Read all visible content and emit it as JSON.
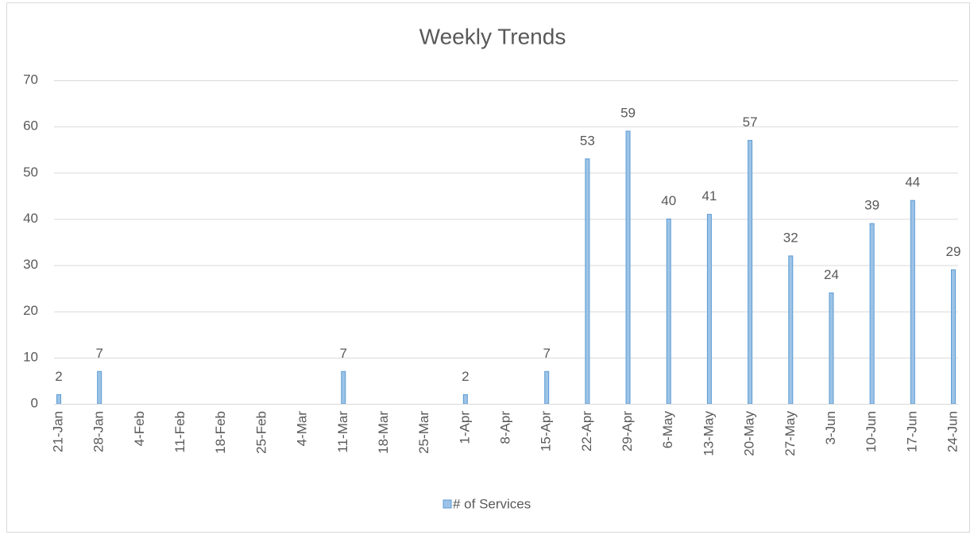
{
  "chart_data": {
    "type": "bar",
    "title": "Weekly Trends",
    "categories": [
      "21-Jan",
      "28-Jan",
      "4-Feb",
      "11-Feb",
      "18-Feb",
      "25-Feb",
      "4-Mar",
      "11-Mar",
      "18-Mar",
      "25-Mar",
      "1-Apr",
      "8-Apr",
      "15-Apr",
      "22-Apr",
      "29-Apr",
      "6-May",
      "13-May",
      "20-May",
      "27-May",
      "3-Jun",
      "10-Jun",
      "17-Jun",
      "24-Jun"
    ],
    "series": [
      {
        "name": "# of Services",
        "color": "#9dc3e6",
        "values": [
          2,
          7,
          null,
          null,
          null,
          null,
          null,
          7,
          null,
          null,
          2,
          null,
          7,
          53,
          59,
          40,
          41,
          57,
          32,
          24,
          39,
          44,
          29
        ]
      }
    ],
    "ylim": [
      0,
      70
    ],
    "yticks": [
      0,
      10,
      20,
      30,
      40,
      50,
      60,
      70
    ],
    "grid": true,
    "legend": "bottom"
  }
}
